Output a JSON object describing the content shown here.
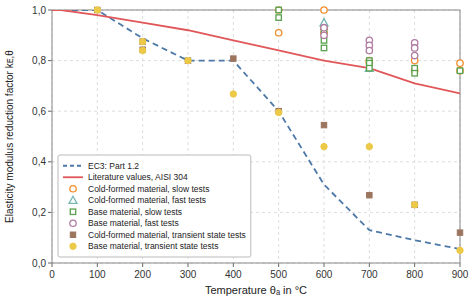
{
  "chart_data": {
    "type": "line",
    "x_label": "Temperature θₐ in °C",
    "y_label": "Elasticity modulus reduction factor kᴇ,θ",
    "xlim": [
      0,
      900
    ],
    "ylim": [
      0.0,
      1.0
    ],
    "xticks": [
      0,
      100,
      200,
      300,
      400,
      500,
      600,
      700,
      800,
      900
    ],
    "yticks": [
      {
        "value": 0.0,
        "label": "0,0"
      },
      {
        "value": 0.2,
        "label": "0,2"
      },
      {
        "value": 0.4,
        "label": "0,4"
      },
      {
        "value": 0.6,
        "label": "0,6"
      },
      {
        "value": 0.8,
        "label": "0,8"
      },
      {
        "value": 1.0,
        "label": "1,0"
      }
    ],
    "grid": true,
    "legend": "lower left",
    "series": [
      {
        "name": "EC3: Part 1.2",
        "type": "line",
        "line_style": "dashed",
        "x": [
          0,
          20,
          100,
          200,
          300,
          400,
          500,
          600,
          700,
          800,
          900
        ],
        "values": [
          1.0,
          1.0,
          1.0,
          0.888,
          0.8,
          0.8,
          0.6,
          0.31,
          0.13,
          0.09,
          0.055
        ]
      },
      {
        "name": "Literature values, AISI 304",
        "type": "line",
        "line_style": "solid",
        "x": [
          0,
          20,
          100,
          200,
          300,
          400,
          500,
          600,
          700,
          800,
          900
        ],
        "values": [
          1.0,
          1.0,
          0.98,
          0.95,
          0.92,
          0.88,
          0.84,
          0.8,
          0.77,
          0.71,
          0.67
        ]
      },
      {
        "name": "Cold-formed material, slow tests",
        "type": "scatter",
        "marker": "circle-open",
        "x": [
          500,
          500,
          600,
          600,
          600,
          700,
          700,
          800,
          800,
          900,
          900
        ],
        "values": [
          1.0,
          0.91,
          1.0,
          0.93,
          0.91,
          0.8,
          0.79,
          0.8,
          0.76,
          0.79,
          0.76
        ]
      },
      {
        "name": "Cold-formed material, fast tests",
        "type": "scatter",
        "marker": "triangle-open",
        "x": [
          600,
          700
        ],
        "values": [
          0.95,
          0.77
        ]
      },
      {
        "name": "Base material, slow tests",
        "type": "scatter",
        "marker": "square-open",
        "x": [
          500,
          500,
          600,
          600,
          600,
          700,
          700,
          700,
          800,
          800,
          900
        ],
        "values": [
          1.0,
          0.97,
          0.92,
          0.88,
          0.85,
          0.8,
          0.79,
          0.77,
          0.77,
          0.75,
          0.76
        ]
      },
      {
        "name": "Base material, fast tests",
        "type": "scatter",
        "marker": "circle-open",
        "x": [
          600,
          600,
          700,
          700,
          700,
          800,
          800,
          800
        ],
        "values": [
          0.93,
          0.9,
          0.88,
          0.86,
          0.84,
          0.87,
          0.85,
          0.82
        ]
      },
      {
        "name": "Cold-formed material, transient state tests",
        "type": "scatter",
        "marker": "square",
        "x": [
          100,
          200,
          200,
          300,
          400,
          500,
          600,
          700,
          800,
          900
        ],
        "values": [
          1.0,
          0.875,
          0.843,
          0.8,
          0.808,
          0.6,
          0.545,
          0.268,
          0.23,
          0.12
        ]
      },
      {
        "name": "Base material, transient state tests",
        "type": "scatter",
        "marker": "circle",
        "x": [
          100,
          200,
          200,
          300,
          400,
          500,
          600,
          700,
          800,
          900
        ],
        "values": [
          1.0,
          0.875,
          0.84,
          0.8,
          0.668,
          0.595,
          0.46,
          0.46,
          0.23,
          0.05
        ]
      }
    ]
  }
}
